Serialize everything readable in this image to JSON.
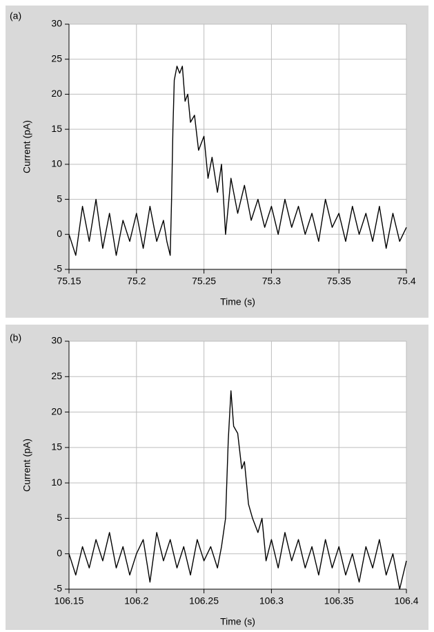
{
  "chart_data": [
    {
      "type": "line",
      "title": "(a)",
      "x_label": "Time (s)",
      "y_label": "Current (pA)",
      "grid": true,
      "color": "#000000",
      "xlim": [
        75.15,
        75.4
      ],
      "xticks": [
        75.15,
        75.2,
        75.25,
        75.3,
        75.35,
        75.4
      ],
      "ylim": [
        -5,
        30
      ],
      "yticks": [
        -5,
        0,
        5,
        10,
        15,
        20,
        25,
        30
      ],
      "x": [
        75.15,
        75.155,
        75.16,
        75.165,
        75.17,
        75.175,
        75.18,
        75.185,
        75.19,
        75.195,
        75.2,
        75.205,
        75.21,
        75.215,
        75.22,
        75.2225,
        75.225,
        75.226,
        75.227,
        75.228,
        75.23,
        75.232,
        75.234,
        75.236,
        75.238,
        75.24,
        75.243,
        75.246,
        75.25,
        75.253,
        75.256,
        75.26,
        75.263,
        75.266,
        75.27,
        75.275,
        75.28,
        75.285,
        75.29,
        75.295,
        75.3,
        75.305,
        75.31,
        75.315,
        75.32,
        75.325,
        75.33,
        75.335,
        75.34,
        75.345,
        75.35,
        75.355,
        75.36,
        75.365,
        75.37,
        75.375,
        75.38,
        75.385,
        75.39,
        75.395,
        75.4
      ],
      "values": [
        0,
        -3,
        4,
        -1,
        5,
        -2,
        3,
        -3,
        2,
        -1,
        3,
        -2,
        4,
        -1,
        2,
        -1,
        -3,
        5,
        15,
        22,
        24,
        23,
        24,
        19,
        20,
        16,
        17,
        12,
        14,
        8,
        11,
        6,
        10,
        0,
        8,
        3,
        7,
        2,
        5,
        1,
        4,
        0,
        5,
        1,
        4,
        0,
        3,
        -1,
        5,
        1,
        3,
        -1,
        4,
        0,
        3,
        -1,
        4,
        -2,
        3,
        -1,
        1
      ]
    },
    {
      "type": "line",
      "title": "(b)",
      "x_label": "Time (s)",
      "y_label": "Current (pA)",
      "grid": true,
      "color": "#000000",
      "xlim": [
        106.15,
        106.4
      ],
      "xticks": [
        106.15,
        106.2,
        106.25,
        106.3,
        106.35,
        106.4
      ],
      "ylim": [
        -5,
        30
      ],
      "yticks": [
        -5,
        0,
        5,
        10,
        15,
        20,
        25,
        30
      ],
      "x": [
        106.15,
        106.155,
        106.16,
        106.165,
        106.17,
        106.175,
        106.18,
        106.185,
        106.19,
        106.195,
        106.2,
        106.205,
        106.21,
        106.215,
        106.22,
        106.225,
        106.23,
        106.235,
        106.24,
        106.245,
        106.25,
        106.255,
        106.26,
        106.263,
        106.266,
        106.268,
        106.27,
        106.272,
        106.275,
        106.278,
        106.28,
        106.283,
        106.286,
        106.29,
        106.293,
        106.296,
        106.3,
        106.305,
        106.31,
        106.315,
        106.32,
        106.325,
        106.33,
        106.335,
        106.34,
        106.345,
        106.35,
        106.355,
        106.36,
        106.365,
        106.37,
        106.375,
        106.38,
        106.385,
        106.39,
        106.395,
        106.4
      ],
      "values": [
        0,
        -3,
        1,
        -2,
        2,
        -1,
        3,
        -2,
        1,
        -3,
        0,
        2,
        -4,
        3,
        -1,
        2,
        -2,
        1,
        -3,
        2,
        -1,
        1,
        -2,
        1,
        5,
        16,
        23,
        18,
        17,
        12,
        13,
        7,
        5,
        3,
        5,
        -1,
        2,
        -2,
        3,
        -1,
        2,
        -2,
        1,
        -3,
        2,
        -2,
        1,
        -3,
        0,
        -4,
        1,
        -2,
        2,
        -3,
        0,
        -5,
        -1
      ]
    }
  ]
}
